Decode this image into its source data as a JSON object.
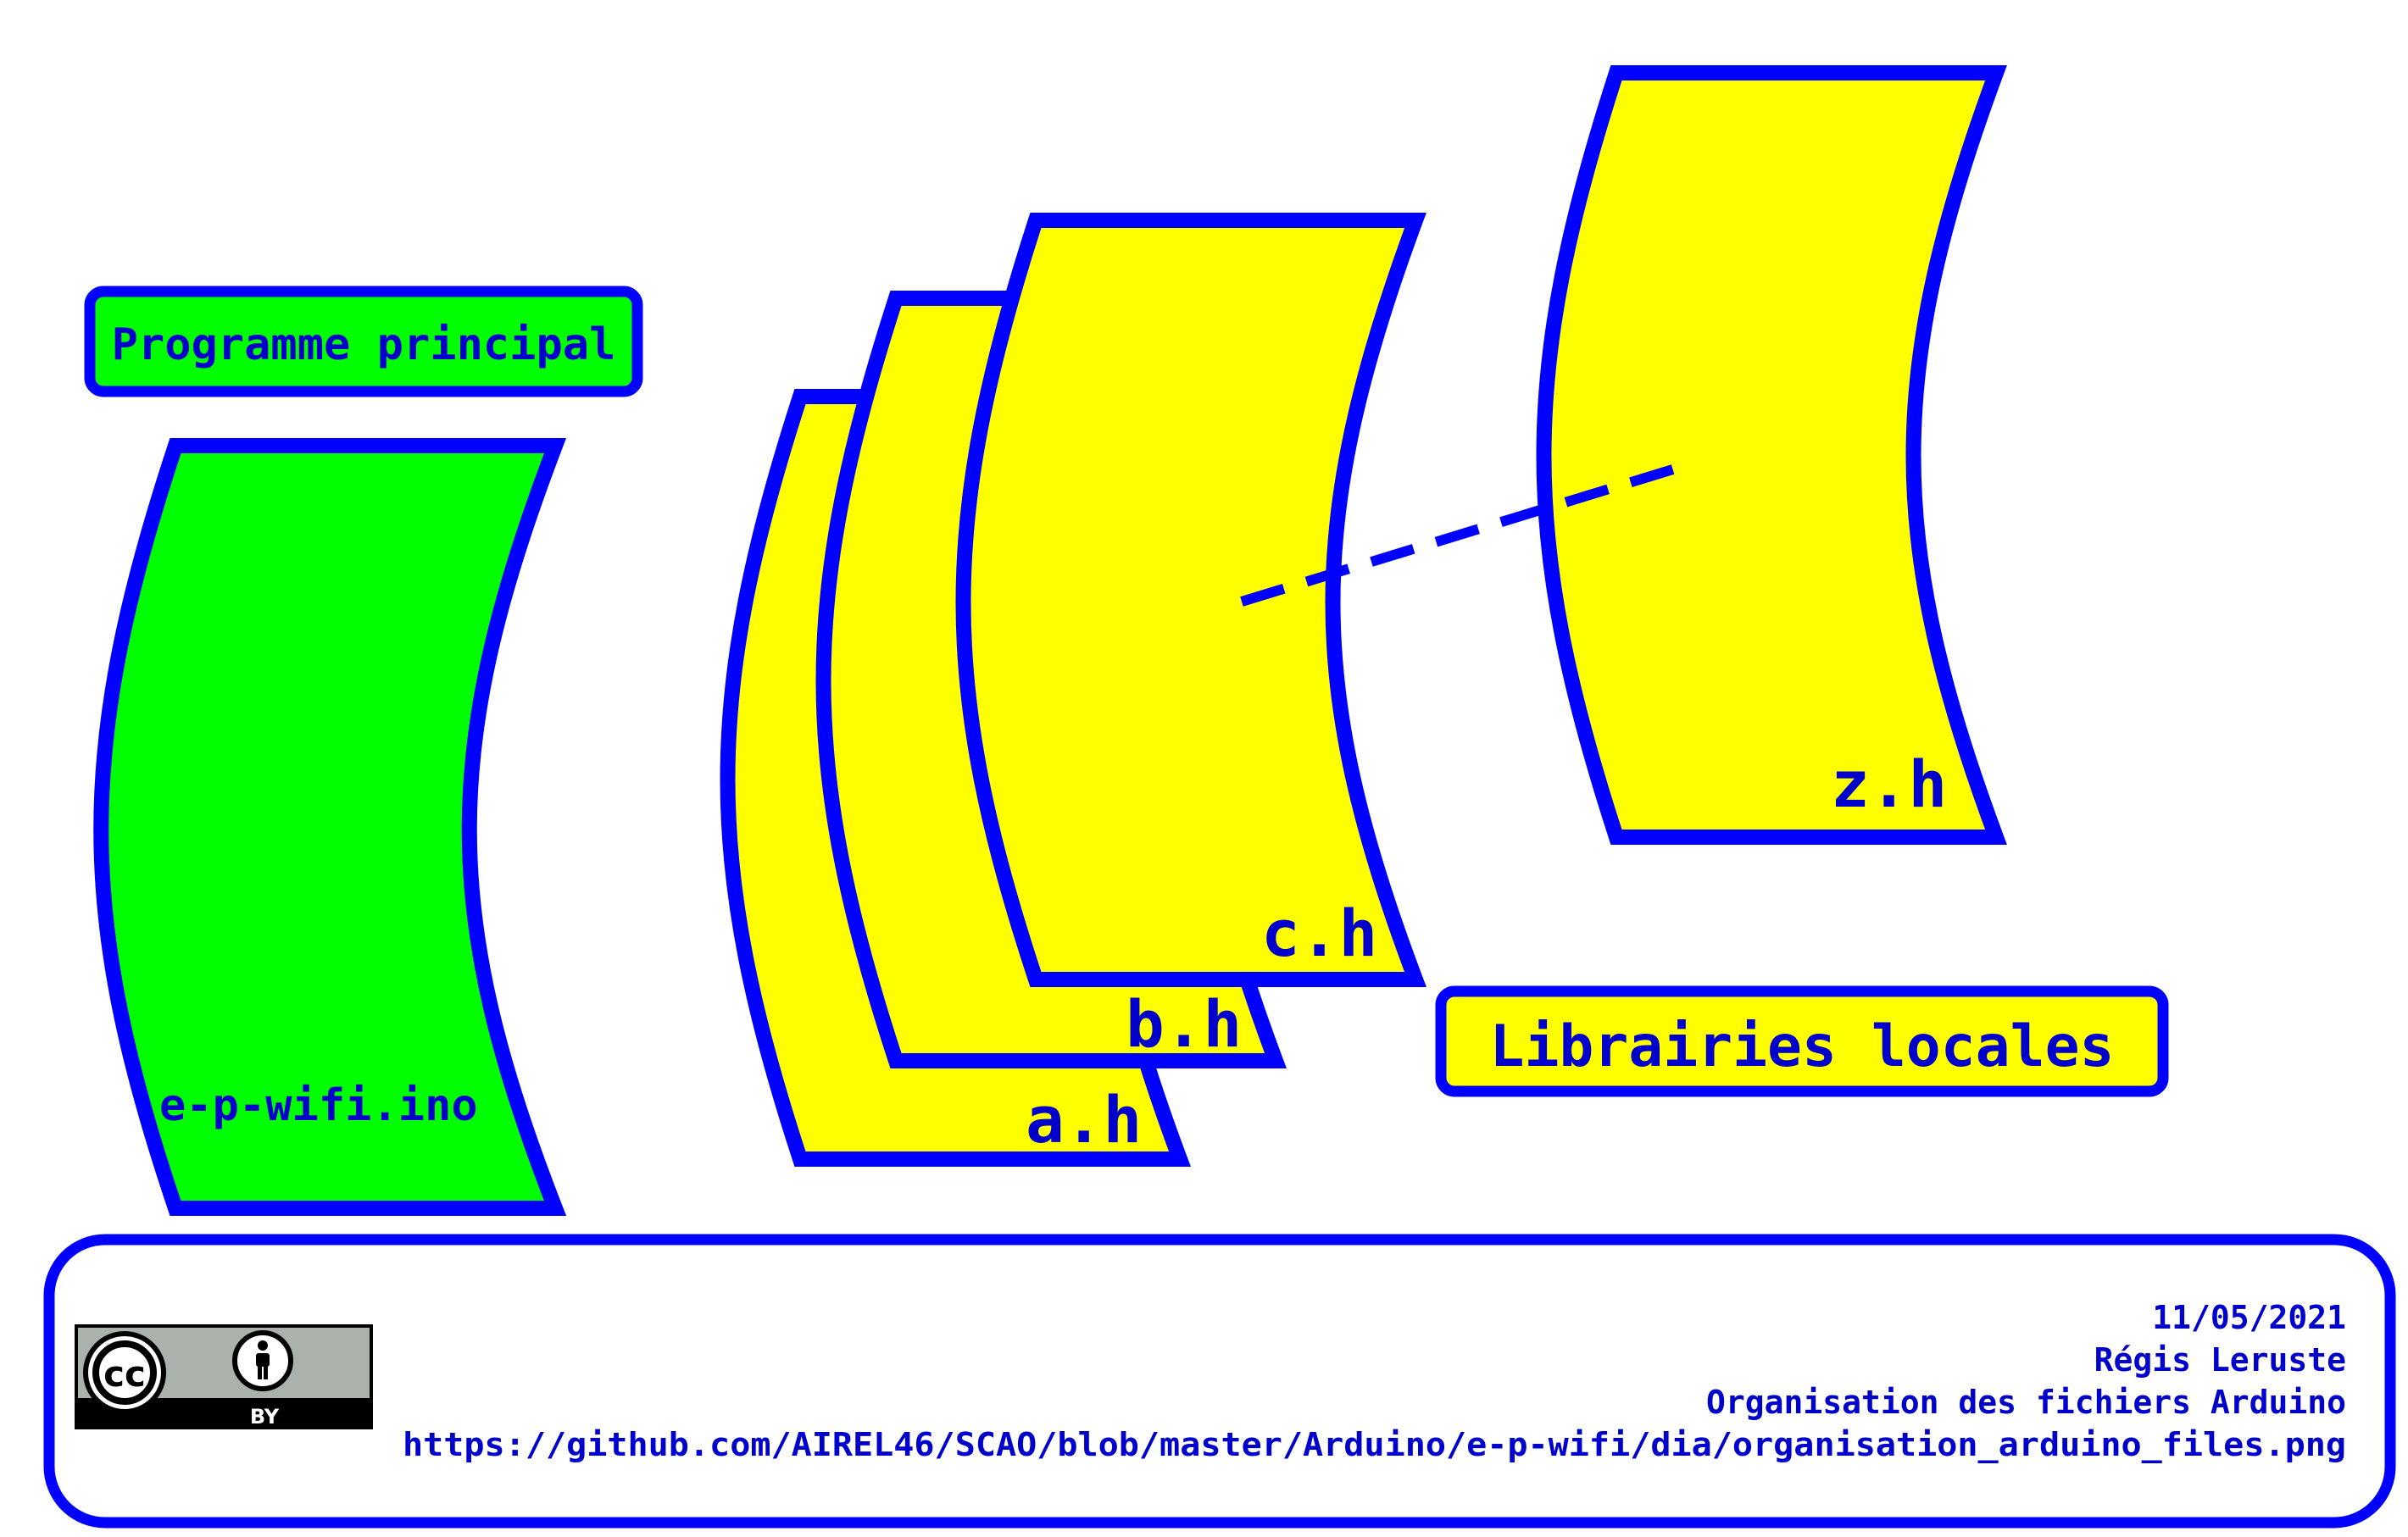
{
  "colors": {
    "stroke": "#0000ff",
    "main_fill": "#00ff00",
    "lib_fill": "#ffff00",
    "text": "#0000cc",
    "background": "#ffffff"
  },
  "labels": {
    "main_program_title": "Programme principal",
    "main_file": "e-p-wifi.ino",
    "local_libraries_title": "Librairies locales"
  },
  "library_files": {
    "a": "a.h",
    "b": "b.h",
    "c": "c.h",
    "z": "z.h"
  },
  "footer": {
    "license_icon": "cc-by-license-icon",
    "license_badge_text": "BY",
    "date": "11/05/2021",
    "author": "Régis Leruste",
    "title": "Organisation des fichiers Arduino",
    "url": "https://github.com/AIREL46/SCAO/blob/master/Arduino/e-p-wifi/dia/organisation_arduino_files.png"
  }
}
